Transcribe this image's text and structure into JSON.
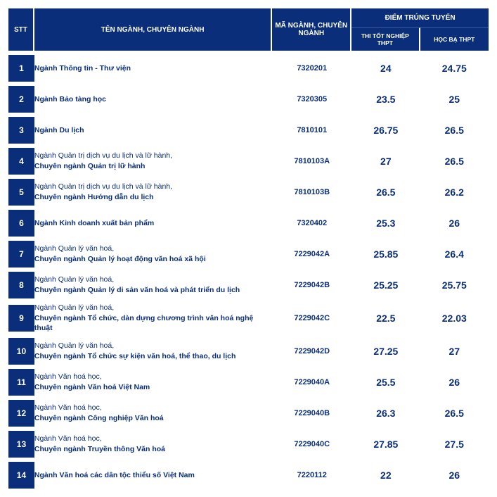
{
  "header": {
    "stt": "STT",
    "name": "TÊN NGÀNH, CHUYÊN NGÀNH",
    "code": "MÃ NGÀNH, CHUYÊN NGÀNH",
    "score_group": "ĐIỂM TRÚNG TUYỂN",
    "score_thpt": "THI TỐT NGHIỆP THPT",
    "score_hocba": "HỌC BẠ THPT"
  },
  "colors": {
    "brand": "#0a2e7a",
    "text": "#0a2e7a",
    "bg": "#ffffff"
  },
  "rows": [
    {
      "stt": "1",
      "name1": "Ngành Thông tin - Thư viện",
      "name2": "",
      "code": "7320201",
      "thpt": "24",
      "hocba": "24.75"
    },
    {
      "stt": "2",
      "name1": "Ngành Bảo tàng học",
      "name2": "",
      "code": "7320305",
      "thpt": "23.5",
      "hocba": "25"
    },
    {
      "stt": "3",
      "name1": "Ngành Du lịch",
      "name2": "",
      "code": "7810101",
      "thpt": "26.75",
      "hocba": "26.5"
    },
    {
      "stt": "4",
      "name1": "Ngành Quản trị dịch vụ du lịch và lữ hành,",
      "name2": "Chuyên ngành Quản trị lữ hành",
      "code": "7810103A",
      "thpt": "27",
      "hocba": "26.5"
    },
    {
      "stt": "5",
      "name1": "Ngành Quản trị dịch vụ du lịch và lữ hành,",
      "name2": "Chuyên ngành Hướng dẫn du lịch",
      "code": "7810103B",
      "thpt": "26.5",
      "hocba": "26.2"
    },
    {
      "stt": "6",
      "name1": "Ngành Kinh doanh xuất bản phẩm",
      "name2": "",
      "code": "7320402",
      "thpt": "25.3",
      "hocba": "26"
    },
    {
      "stt": "7",
      "name1": "Ngành Quản lý văn hoá,",
      "name2": "Chuyên ngành Quản lý hoạt động văn hoá xã hội",
      "code": "7229042A",
      "thpt": "25.85",
      "hocba": "26.4"
    },
    {
      "stt": "8",
      "name1": "Ngành Quản lý văn hoá,",
      "name2": "Chuyên ngành Quản lý di sản văn hoá và phát triển du lịch",
      "code": "7229042B",
      "thpt": "25.25",
      "hocba": "25.75"
    },
    {
      "stt": "9",
      "name1": "Ngành Quản lý văn hoá,",
      "name2": "Chuyên ngành Tổ chức, dàn dựng chương trình văn hoá nghệ thuật",
      "code": "7229042C",
      "thpt": "22.5",
      "hocba": "22.03"
    },
    {
      "stt": "10",
      "name1": "Ngành Quản lý văn hoá,",
      "name2": "Chuyên ngành Tổ chức sự kiện văn hoá, thể thao, du lịch",
      "code": "7229042D",
      "thpt": "27.25",
      "hocba": "27"
    },
    {
      "stt": "11",
      "name1": "Ngành Văn hoá học,",
      "name2": "Chuyên ngành Văn hoá Việt Nam",
      "code": "7229040A",
      "thpt": "25.5",
      "hocba": "26"
    },
    {
      "stt": "12",
      "name1": "Ngành Văn hoá học,",
      "name2": "Chuyên ngành Công nghiệp Văn hoá",
      "code": "7229040B",
      "thpt": "26.3",
      "hocba": "26.5"
    },
    {
      "stt": "13",
      "name1": "Ngành Văn hoá học,",
      "name2": "Chuyên ngành Truyền thông Văn hoá",
      "code": "7229040C",
      "thpt": "27.85",
      "hocba": "27.5"
    },
    {
      "stt": "14",
      "name1": "Ngành Văn hoá các dân tộc thiểu số Việt Nam",
      "name2": "",
      "code": "7220112",
      "thpt": "22",
      "hocba": "26"
    }
  ]
}
